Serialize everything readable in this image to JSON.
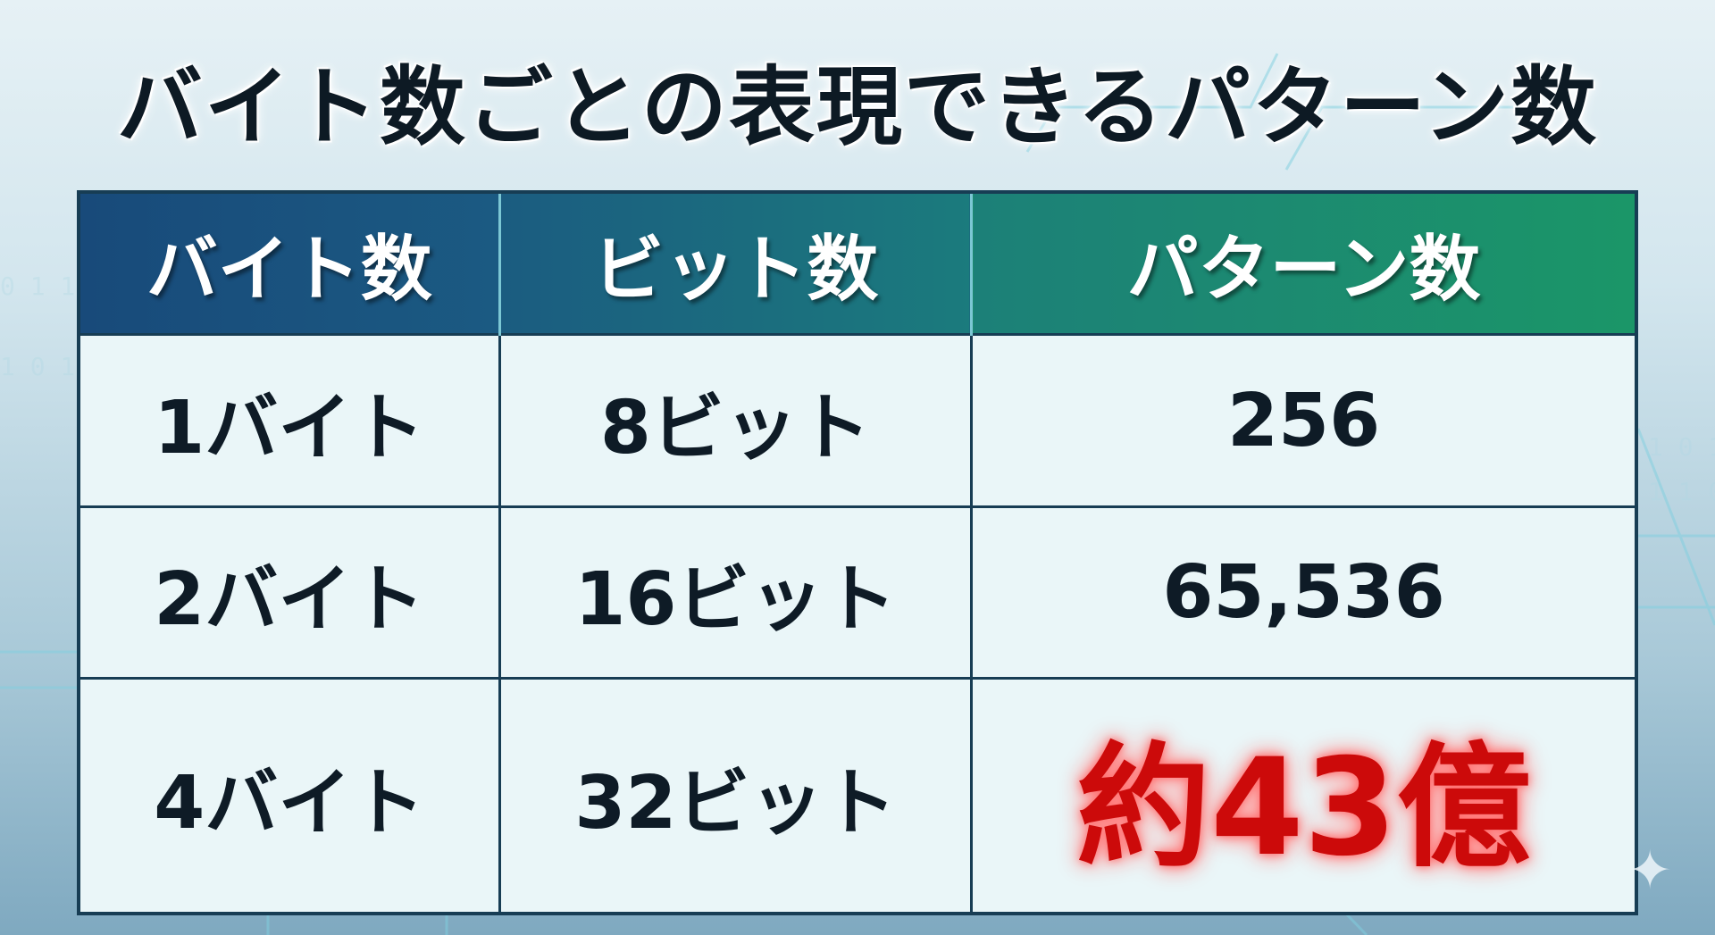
{
  "title": "バイト数ごとの表現できるパターン数",
  "table": {
    "headers": [
      "バイト数",
      "ビット数",
      "パターン数"
    ],
    "rows": [
      [
        "1バイト",
        "8ビット",
        "256"
      ],
      [
        "2バイト",
        "16ビット",
        "65,536"
      ],
      [
        "4バイト",
        "32ビット",
        "約43億"
      ]
    ]
  },
  "colors": {
    "header_start": "#184a7a",
    "header_end": "#1b9668",
    "highlight": "#cc0a0a"
  },
  "icons": {
    "sparkle": "sparkle-icon"
  }
}
